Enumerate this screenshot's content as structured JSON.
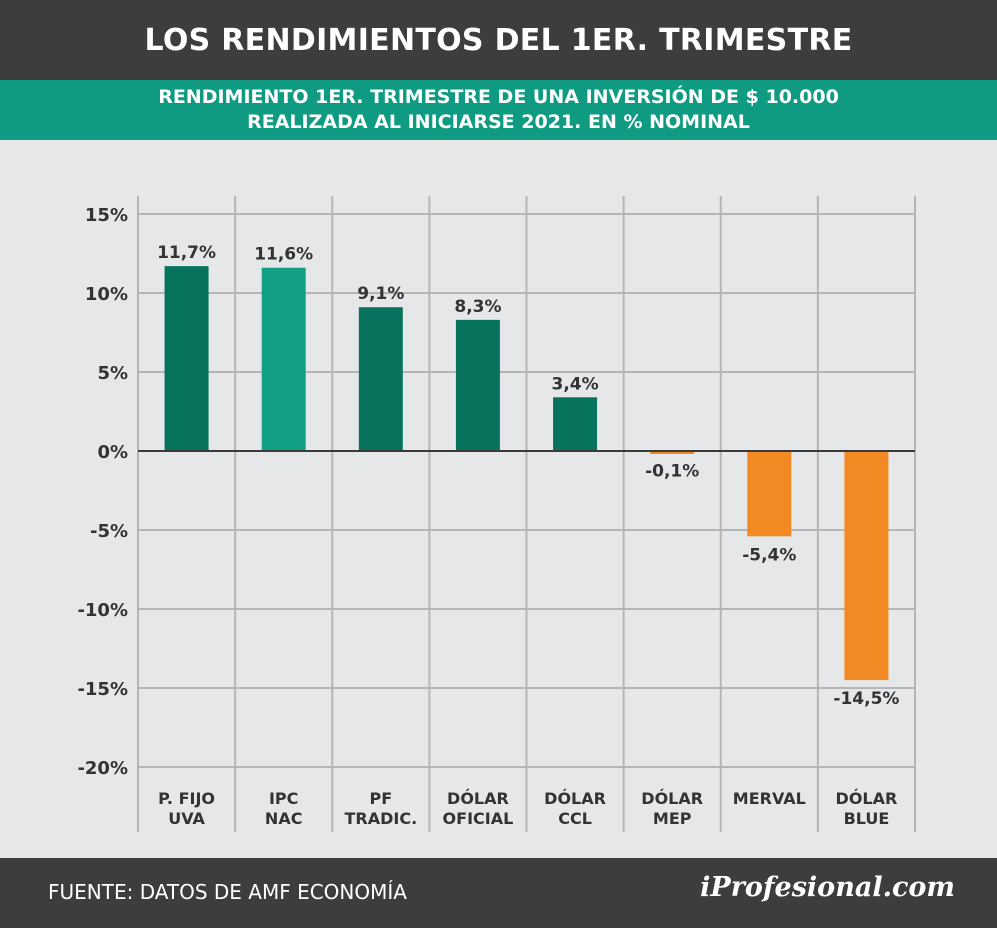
{
  "header": {
    "title": "LOS RENDIMIENTOS DEL 1ER. TRIMESTRE",
    "subtitle_line1": "RENDIMIENTO 1ER. TRIMESTRE DE UNA INVERSIÓN DE $ 10.000",
    "subtitle_line2": "REALIZADA AL INICIARSE 2021. EN % NOMINAL"
  },
  "footer": {
    "source": "FUENTE: DATOS DE AMF ECONOMÍA",
    "brand": "iProfesional.com"
  },
  "colors": {
    "positive_dark": "#08735c",
    "positive_light": "#12a084",
    "negative": "#f28a24",
    "header_bg": "#3d3d3d",
    "subheader_bg": "#0e9b82"
  },
  "chart_data": {
    "type": "bar",
    "title": "RENDIMIENTO 1ER. TRIMESTRE DE UNA INVERSIÓN DE $ 10.000 REALIZADA AL INICIARSE 2021. EN % NOMINAL",
    "categories": [
      [
        "P.  FIJO",
        "UVA"
      ],
      [
        "IPC",
        "NAC"
      ],
      [
        "PF",
        "TRADIC."
      ],
      [
        "DÓLAR",
        "OFICIAL"
      ],
      [
        "DÓLAR",
        "CCL"
      ],
      [
        "DÓLAR",
        "MEP"
      ],
      [
        "MERVAL"
      ],
      [
        "DÓLAR",
        "BLUE"
      ]
    ],
    "values": [
      11.7,
      11.6,
      9.1,
      8.3,
      3.4,
      -0.1,
      -5.4,
      -14.5
    ],
    "value_labels": [
      "11,7%",
      "11,6%",
      "9,1%",
      "8,3%",
      "3,4%",
      "-0,1%",
      "-5,4%",
      "-14,5%"
    ],
    "bar_colors": [
      "#08735c",
      "#12a084",
      "#08735c",
      "#08735c",
      "#08735c",
      "#f28a24",
      "#f28a24",
      "#f28a24"
    ],
    "yticks": [
      15,
      10,
      5,
      0,
      -5,
      -10,
      -15,
      -20
    ],
    "ytick_labels": [
      "15%",
      "10%",
      "5%",
      "0%",
      "-5%",
      "-10%",
      "-15%",
      "-20%"
    ],
    "ylim": [
      -20,
      15
    ],
    "xlabel": "",
    "ylabel": "",
    "grid": true
  }
}
